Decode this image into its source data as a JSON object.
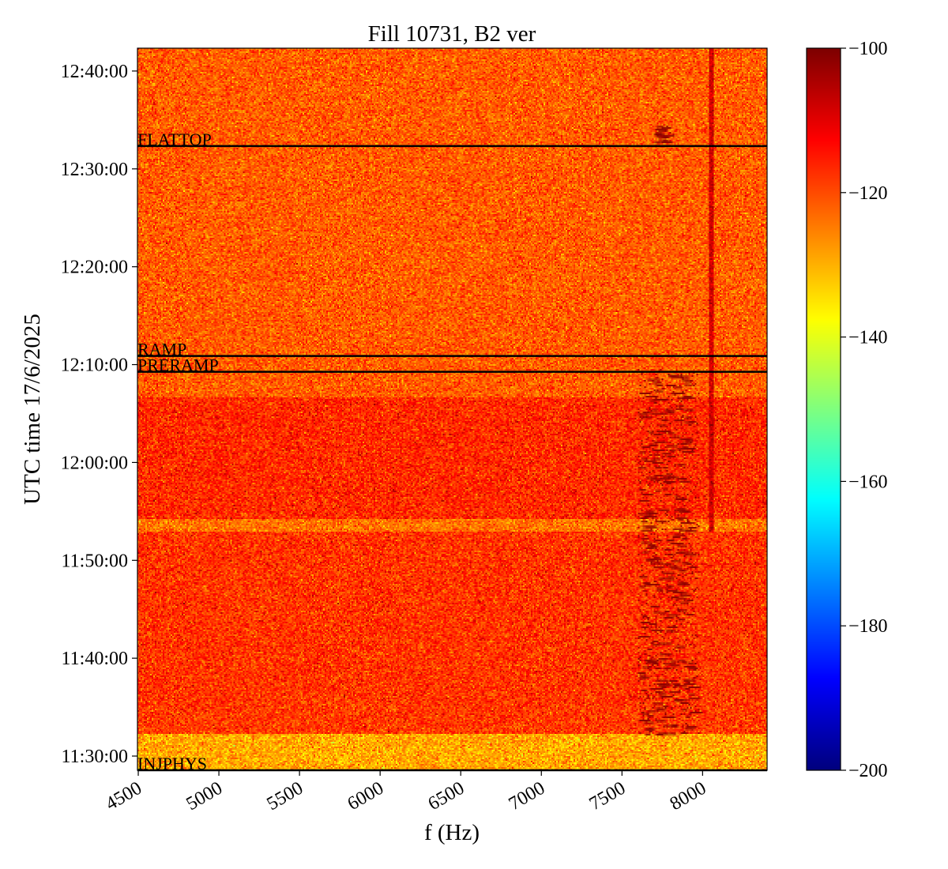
{
  "chart_data": {
    "type": "heatmap",
    "title": "Fill 10731, B2 ver",
    "xlabel": "f (Hz)",
    "ylabel": "UTC time 17/6/2025",
    "xlim": [
      4495,
      8400
    ],
    "ylim": [
      "11:28:33",
      "12:42:20"
    ],
    "x_ticks": [
      4500,
      5000,
      5500,
      6000,
      6500,
      7000,
      7500,
      8000
    ],
    "y_ticks": [
      "11:30:00",
      "11:40:00",
      "11:50:00",
      "12:00:00",
      "12:10:00",
      "12:20:00",
      "12:30:00",
      "12:40:00"
    ],
    "colormap": "jet",
    "colorbar": {
      "range": [
        -200,
        -100
      ],
      "ticks": [
        -100,
        -120,
        -140,
        -160,
        -180,
        -200
      ],
      "tick_labels": [
        "−100",
        "−120",
        "−140",
        "−160",
        "−180",
        "−200"
      ]
    },
    "grid": false,
    "background_levels_db": [
      {
        "from": "11:28:33",
        "to": "11:32:13",
        "mean": -129
      },
      {
        "from": "11:32:13",
        "to": "11:35:40",
        "mean": -118
      },
      {
        "from": "11:35:40",
        "to": "11:53:00",
        "mean": -117.5
      },
      {
        "from": "11:53:00",
        "to": "11:54:10",
        "mean": -124
      },
      {
        "from": "11:54:10",
        "to": "12:06:40",
        "mean": -116.5
      },
      {
        "from": "12:06:40",
        "to": "12:42:20",
        "mean": -121.5
      }
    ],
    "features": [
      {
        "kind": "vertical-line",
        "f": 8055,
        "from": "11:53:00",
        "to": "12:42:20",
        "level": -108
      },
      {
        "kind": "burst-region",
        "f_range": [
          7600,
          7980
        ],
        "from": "11:32:13",
        "to": "12:09:30",
        "level": -104
      },
      {
        "kind": "burst-region",
        "f_range": [
          7700,
          7820
        ],
        "from": "12:32:30",
        "to": "12:34:30",
        "level": -104
      }
    ],
    "annotations": [
      {
        "label": "FLATTOP",
        "time": "12:32:20"
      },
      {
        "label": "RAMP",
        "time": "12:10:53"
      },
      {
        "label": "PRERAMP",
        "time": "12:09:16"
      },
      {
        "label": "INJPHYS",
        "time": "11:28:33"
      }
    ]
  }
}
